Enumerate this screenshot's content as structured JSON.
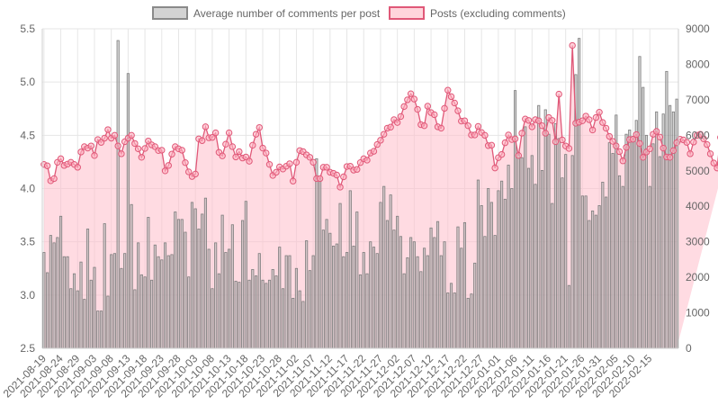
{
  "chart_data": {
    "type": "bar",
    "legend": [
      {
        "name": "Average number of comments per post",
        "fill": "#d3d3d3",
        "stroke": "#8a8a8a"
      },
      {
        "name": "Posts (excluding comments)",
        "fill": "#ffd5dc",
        "stroke": "#e05878"
      }
    ],
    "legend_position": "top-center",
    "x_start": "2021-08-19",
    "x_end": "2022-02-16",
    "x_tick_labels": [
      "2021-08-19",
      "2021-08-24",
      "2021-08-29",
      "2021-09-03",
      "2021-09-08",
      "2021-09-13",
      "2021-09-18",
      "2021-09-23",
      "2021-09-28",
      "2021-10-03",
      "2021-10-08",
      "2021-10-13",
      "2021-10-18",
      "2021-10-23",
      "2021-10-28",
      "2021-11-02",
      "2021-11-07",
      "2021-11-12",
      "2021-11-17",
      "2021-11-22",
      "2021-11-27",
      "2021-12-02",
      "2021-12-07",
      "2021-12-12",
      "2021-12-17",
      "2021-12-22",
      "2021-12-27",
      "2022-01-01",
      "2022-01-06",
      "2022-01-11",
      "2022-01-16",
      "2022-01-21",
      "2022-01-26",
      "2022-01-31",
      "2022-02-05",
      "2022-02-10",
      "2022-02-15"
    ],
    "y_left": {
      "min": 2.5,
      "max": 5.5,
      "ticks": [
        "2.5",
        "3.0",
        "3.5",
        "4.0",
        "4.5",
        "5.0",
        "5.5"
      ]
    },
    "y_right": {
      "min": 0,
      "max": 9000,
      "ticks": [
        "0",
        "1000",
        "2000",
        "3000",
        "4000",
        "5000",
        "6000",
        "7000",
        "8000",
        "9000"
      ]
    },
    "grid": true,
    "series": [
      {
        "name": "Average number of comments per post",
        "axis": "left",
        "type": "bar",
        "values": [
          3.4,
          3.21,
          3.56,
          3.49,
          3.54,
          3.74,
          3.36,
          3.36,
          3.06,
          3.2,
          3.04,
          3.31,
          2.96,
          3.62,
          3.14,
          3.26,
          2.85,
          2.85,
          3.67,
          2.99,
          3.38,
          3.39,
          5.39,
          3.25,
          3.39,
          5.08,
          3.85,
          3.05,
          3.49,
          3.19,
          3.17,
          3.73,
          3.14,
          3.47,
          3.36,
          3.33,
          3.49,
          3.37,
          3.38,
          3.78,
          3.71,
          3.71,
          3.59,
          3.17,
          3.87,
          3.81,
          3.62,
          3.76,
          3.91,
          3.43,
          3.06,
          3.49,
          3.2,
          3.75,
          3.4,
          3.43,
          3.66,
          3.13,
          3.12,
          3.7,
          3.88,
          3.14,
          3.24,
          3.18,
          3.39,
          3.14,
          3.11,
          3.14,
          3.24,
          3.18,
          3.45,
          3.06,
          3.37,
          3.37,
          2.97,
          3.25,
          3.04,
          2.94,
          3.51,
          3.23,
          3.37,
          4.28,
          4.1,
          3.61,
          3.71,
          3.58,
          3.46,
          3.48,
          3.86,
          3.36,
          3.4,
          3.98,
          3.46,
          3.78,
          3.19,
          3.4,
          3.2,
          3.5,
          3.45,
          3.39,
          3.87,
          4.02,
          3.7,
          3.94,
          3.61,
          3.74,
          3.55,
          3.2,
          3.35,
          3.54,
          3.5,
          3.36,
          3.22,
          3.44,
          3.37,
          3.63,
          3.54,
          3.69,
          3.37,
          3.5,
          3.02,
          3.11,
          3.02,
          3.64,
          3.44,
          3.68,
          2.97,
          3.01,
          3.3,
          4.08,
          3.84,
          3.55,
          4.0,
          3.87,
          3.56,
          3.98,
          4.07,
          3.9,
          4.22,
          4.0,
          4.92,
          4.34,
          4.29,
          4.58,
          4.19,
          4.31,
          4.04,
          4.78,
          4.17,
          4.74,
          4.51,
          3.86,
          4.61,
          4.47,
          4.1,
          4.32,
          3.09,
          4.31,
          5.07,
          5.41,
          3.93,
          3.93,
          3.7,
          3.79,
          3.75,
          3.84,
          4.06,
          3.92,
          4.43,
          4.33,
          4.69,
          4.12,
          4.02,
          4.51,
          4.55,
          4.49,
          4.64,
          5.24,
          4.95,
          4.5,
          4.02,
          4.42,
          4.72,
          4.3,
          4.7,
          5.1,
          4.78,
          4.72,
          4.84
        ]
      },
      {
        "name": "Posts (excluding comments)",
        "axis": "right",
        "type": "area",
        "values": [
          5180,
          5140,
          4720,
          4780,
          5240,
          5340,
          5150,
          5190,
          5240,
          5180,
          5100,
          5530,
          5680,
          5640,
          5700,
          5430,
          5880,
          5800,
          5920,
          6160,
          5920,
          6000,
          5700,
          5480,
          5820,
          5920,
          6000,
          5770,
          5620,
          5380,
          5630,
          5840,
          5730,
          5680,
          5570,
          5580,
          5000,
          5150,
          5470,
          5680,
          5620,
          5580,
          5230,
          4970,
          4840,
          4910,
          5900,
          5850,
          6240,
          5930,
          5940,
          6070,
          5520,
          5420,
          5750,
          6070,
          5680,
          5390,
          5540,
          5360,
          5390,
          5270,
          5720,
          6030,
          6220,
          5640,
          5500,
          5180,
          4870,
          4960,
          5110,
          5050,
          5130,
          5200,
          4710,
          5240,
          5570,
          5540,
          5450,
          5380,
          5240,
          4780,
          4780,
          5100,
          5100,
          4960,
          4930,
          4880,
          4540,
          4830,
          5120,
          5130,
          5020,
          5040,
          5230,
          5340,
          5300,
          5500,
          5550,
          5740,
          5860,
          6030,
          6200,
          6230,
          6440,
          6360,
          6530,
          6810,
          7000,
          7170,
          7020,
          6730,
          6300,
          6270,
          6820,
          6640,
          6580,
          6240,
          6200,
          6760,
          7270,
          7090,
          6910,
          6690,
          6400,
          6410,
          6270,
          6010,
          6010,
          6250,
          6080,
          6000,
          5710,
          5720,
          5080,
          5370,
          5460,
          5790,
          6010,
          5880,
          5900,
          5430,
          6060,
          6460,
          6420,
          6240,
          6440,
          6410,
          6270,
          6060,
          6500,
          6420,
          5820,
          7160,
          5870,
          5700,
          5630,
          8530,
          6340,
          6370,
          6410,
          6540,
          6440,
          6150,
          6500,
          6650,
          6360,
          6200,
          5970,
          5830,
          5700,
          5540,
          5280,
          5660,
          5880,
          5890,
          6020,
          5770,
          5380,
          5530,
          5620,
          6030,
          6110,
          5950,
          5640,
          5390,
          5380,
          5570,
          5790,
          5890,
          5870,
          5800,
          5480,
          5810,
          6000,
          6030,
          5900,
          5740,
          5480,
          5220,
          5080,
          5940,
          6010,
          6120,
          5880
        ]
      }
    ]
  }
}
